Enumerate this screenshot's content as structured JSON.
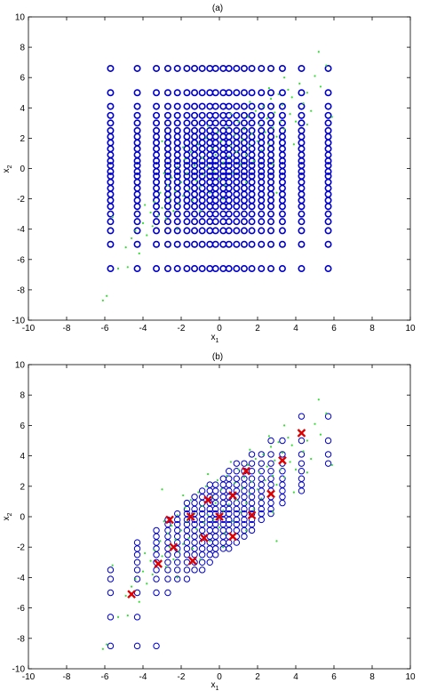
{
  "chart_data": [
    {
      "type": "scatter",
      "title": "(a)",
      "xlabel": "x",
      "xlabel_sub": "1",
      "ylabel": "x",
      "ylabel_sub": "2",
      "xlim": [
        -10,
        10
      ],
      "ylim": [
        -10,
        10
      ],
      "xticks": [
        -10,
        -8,
        -6,
        -4,
        -2,
        0,
        2,
        4,
        6,
        8,
        10
      ],
      "yticks": [
        -10,
        -8,
        -6,
        -4,
        -2,
        0,
        2,
        4,
        6,
        8,
        10
      ],
      "grid": false,
      "legend": "none",
      "colors": {
        "circles": "#0000cc",
        "points": "#33dd33"
      },
      "series": [
        {
          "marker": "open-circle",
          "grid_levels": [
            -6.6,
            -5.0,
            -4.1,
            -3.5,
            -3.0,
            -2.5,
            -2.1,
            -1.7,
            -1.3,
            -0.9,
            -0.5,
            -0.2,
            0.2,
            0.5,
            0.9,
            1.3,
            1.7,
            2.1,
            2.5,
            3.0,
            3.5,
            4.1,
            5.0,
            6.6
          ],
          "x_levels": [
            -5.7,
            -4.3,
            -3.3,
            -2.7,
            -2.2,
            -1.7,
            -1.3,
            -0.9,
            -0.5,
            -0.2,
            0.2,
            0.5,
            0.9,
            1.3,
            1.7,
            2.2,
            2.7,
            3.3,
            4.3,
            5.7
          ]
        },
        {
          "marker": "dot",
          "points": [
            [
              -6.1,
              -8.7
            ],
            [
              -5.9,
              -8.4
            ],
            [
              -5.3,
              -6.6
            ],
            [
              -4.9,
              -5.2
            ],
            [
              -4.6,
              -4.6
            ],
            [
              -4.4,
              -4.1
            ],
            [
              -4.2,
              -5.6
            ],
            [
              -4.0,
              -3.6
            ],
            [
              -3.8,
              -4.4
            ],
            [
              -3.6,
              -2.9
            ],
            [
              -3.5,
              -3.8
            ],
            [
              -3.4,
              -2.2
            ],
            [
              -3.2,
              -3.1
            ],
            [
              -3.1,
              -1.6
            ],
            [
              -3.0,
              -2.6
            ],
            [
              -2.8,
              -3.3
            ],
            [
              -2.7,
              -1.1
            ],
            [
              -2.6,
              -2.0
            ],
            [
              -2.5,
              -0.6
            ],
            [
              -2.4,
              -2.8
            ],
            [
              -2.3,
              -1.5
            ],
            [
              -2.2,
              0.1
            ],
            [
              -2.1,
              -2.3
            ],
            [
              -2.0,
              -0.9
            ],
            [
              -1.9,
              -1.8
            ],
            [
              -1.8,
              0.6
            ],
            [
              -1.7,
              -0.3
            ],
            [
              -1.6,
              -1.4
            ],
            [
              -1.5,
              1.1
            ],
            [
              -1.4,
              -2.1
            ],
            [
              -1.3,
              0.2
            ],
            [
              -1.2,
              -0.8
            ],
            [
              -1.1,
              1.6
            ],
            [
              -1.0,
              -1.2
            ],
            [
              -0.9,
              0.7
            ],
            [
              -0.8,
              -0.4
            ],
            [
              -0.7,
              2.0
            ],
            [
              -0.6,
              0.1
            ],
            [
              -0.5,
              -1.6
            ],
            [
              -0.4,
              1.3
            ],
            [
              -0.3,
              -0.2
            ],
            [
              -0.2,
              0.9
            ],
            [
              -0.1,
              2.4
            ],
            [
              0.0,
              -0.7
            ],
            [
              0.1,
              1.8
            ],
            [
              0.2,
              0.4
            ],
            [
              0.3,
              -1.1
            ],
            [
              0.4,
              2.7
            ],
            [
              0.5,
              0.8
            ],
            [
              0.6,
              1.5
            ],
            [
              0.7,
              -0.3
            ],
            [
              0.8,
              2.2
            ],
            [
              0.9,
              1.1
            ],
            [
              1.0,
              3.1
            ],
            [
              1.1,
              0.3
            ],
            [
              1.2,
              1.9
            ],
            [
              1.3,
              2.6
            ],
            [
              1.4,
              0.9
            ],
            [
              1.5,
              3.4
            ],
            [
              1.6,
              1.5
            ],
            [
              1.7,
              2.3
            ],
            [
              1.8,
              0.5
            ],
            [
              1.9,
              3.8
            ],
            [
              2.0,
              1.8
            ],
            [
              2.1,
              2.9
            ],
            [
              2.2,
              1.2
            ],
            [
              2.3,
              4.1
            ],
            [
              2.4,
              2.4
            ],
            [
              2.5,
              3.3
            ],
            [
              2.6,
              1.6
            ],
            [
              2.7,
              4.6
            ],
            [
              2.8,
              2.7
            ],
            [
              2.9,
              3.7
            ],
            [
              3.0,
              2.1
            ],
            [
              3.1,
              4.9
            ],
            [
              3.2,
              3.1
            ],
            [
              3.3,
              4.2
            ],
            [
              3.4,
              2.6
            ],
            [
              3.6,
              5.2
            ],
            [
              3.7,
              3.6
            ],
            [
              3.8,
              4.7
            ],
            [
              4.0,
              3.1
            ],
            [
              4.2,
              5.6
            ],
            [
              4.4,
              4.3
            ],
            [
              4.6,
              5.0
            ],
            [
              4.8,
              3.8
            ],
            [
              5.0,
              6.1
            ],
            [
              5.3,
              5.4
            ],
            [
              5.6,
              6.8
            ],
            [
              5.2,
              7.7
            ],
            [
              -4.8,
              -6.5
            ],
            [
              -3.9,
              -2.4
            ],
            [
              -2.9,
              -0.3
            ],
            [
              -1.9,
              1.4
            ],
            [
              -0.6,
              2.8
            ],
            [
              0.6,
              3.6
            ],
            [
              1.6,
              4.4
            ],
            [
              2.6,
              5.3
            ],
            [
              3.4,
              6.0
            ],
            [
              -2.2,
              -4.0
            ],
            [
              -1.0,
              -2.8
            ],
            [
              0.2,
              -2.0
            ],
            [
              1.4,
              -0.9
            ],
            [
              2.8,
              0.3
            ],
            [
              3.9,
              1.6
            ],
            [
              4.6,
              2.9
            ],
            [
              -5.6,
              -3.2
            ],
            [
              5.9,
              3.4
            ],
            [
              -3.0,
              1.8
            ],
            [
              3.0,
              -1.6
            ]
          ]
        }
      ]
    },
    {
      "type": "scatter",
      "title": "(b)",
      "xlabel": "x",
      "xlabel_sub": "1",
      "ylabel": "x",
      "ylabel_sub": "2",
      "xlim": [
        -10,
        10
      ],
      "ylim": [
        -10,
        10
      ],
      "xticks": [
        -10,
        -8,
        -6,
        -4,
        -2,
        0,
        2,
        4,
        6,
        8,
        10
      ],
      "yticks": [
        -10,
        -8,
        -6,
        -4,
        -2,
        0,
        2,
        4,
        6,
        8,
        10
      ],
      "grid": false,
      "legend": "none",
      "colors": {
        "circles": "#0000cc",
        "points": "#33dd33",
        "centers": "#dd0000"
      },
      "series": [
        {
          "marker": "open-circle",
          "band": "|x2 - x1| <= 2.6",
          "exclude_corner": [
            -8,
            -6
          ]
        },
        {
          "marker": "dot",
          "same_points_as_panel_a": true
        },
        {
          "marker": "x",
          "points": [
            [
              -4.6,
              -5.1
            ],
            [
              -3.2,
              -3.1
            ],
            [
              -2.4,
              -2.0
            ],
            [
              -2.6,
              -0.2
            ],
            [
              -1.4,
              -2.9
            ],
            [
              -0.8,
              -1.4
            ],
            [
              -1.5,
              0.0
            ],
            [
              -0.6,
              1.1
            ],
            [
              0.0,
              0.0
            ],
            [
              0.7,
              -1.3
            ],
            [
              0.7,
              1.4
            ],
            [
              1.7,
              0.1
            ],
            [
              1.4,
              3.0
            ],
            [
              2.7,
              1.5
            ],
            [
              3.3,
              3.7
            ],
            [
              4.3,
              5.5
            ]
          ]
        }
      ]
    }
  ]
}
